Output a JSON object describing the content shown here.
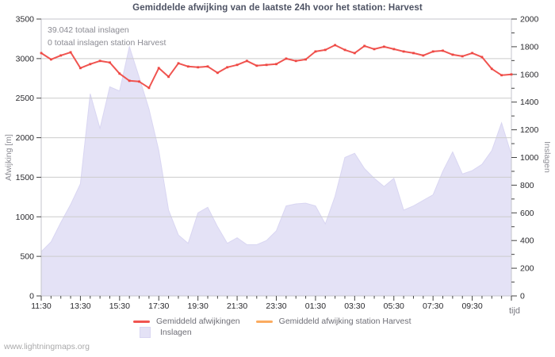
{
  "title": "Gemiddelde afwijking van de laatste 24h voor het station: Harvest",
  "annotations": {
    "total_strikes": "39.042 totaal inslagen",
    "station_strikes": "0 totaal inslagen station Harvest"
  },
  "watermark": "www.lightningmaps.org",
  "colors": {
    "avg_deviation_line": "#f05450",
    "avg_deviation_marker": "#ee4742",
    "station_line": "#fbab60",
    "strikes_fill": "#e4e2f6",
    "strikes_edge": "#d9d6f2",
    "gridline": "#cccccc",
    "plot_border": "#c6c6cc",
    "tick_mark": "#444444",
    "tick_text": "#2a2a2e",
    "muted_text": "#8b8b93"
  },
  "legend": {
    "items": [
      {
        "label": "Gemiddeld afwijkingen",
        "swatch": "line",
        "color": "#f05450"
      },
      {
        "label": "Gemiddeld afwijking station Harvest",
        "swatch": "line",
        "color": "#fbab60"
      },
      {
        "label": "Inslagen",
        "swatch": "box",
        "color": "#e4e2f6"
      }
    ]
  },
  "chart_data": {
    "type": "line",
    "grid": "horizontal",
    "legend_position": "bottom",
    "xlabel": "tijd",
    "x": [
      "11:30",
      "12:00",
      "12:30",
      "13:00",
      "13:30",
      "14:00",
      "14:30",
      "15:00",
      "15:30",
      "16:00",
      "16:30",
      "17:00",
      "17:30",
      "18:00",
      "18:30",
      "19:00",
      "19:30",
      "20:00",
      "20:30",
      "21:00",
      "21:30",
      "22:00",
      "22:30",
      "23:00",
      "23:30",
      "00:00",
      "00:30",
      "01:00",
      "01:30",
      "02:00",
      "02:30",
      "03:00",
      "03:30",
      "04:00",
      "04:30",
      "05:00",
      "05:30",
      "06:00",
      "06:30",
      "07:00",
      "07:30",
      "08:00",
      "08:30",
      "09:00",
      "09:30",
      "10:00",
      "10:30",
      "11:00",
      "11:30"
    ],
    "x_major_ticklabels": [
      "11:30",
      "13:30",
      "15:30",
      "17:30",
      "19:30",
      "21:30",
      "23:30",
      "01:30",
      "03:30",
      "05:30",
      "07:30",
      "09:30"
    ],
    "x_major_every": 4,
    "left_axis": {
      "label": "Afwijking  [m]",
      "min": 0,
      "max": 3500,
      "step": 500
    },
    "right_axis": {
      "label": "Inslagen",
      "min": 0,
      "max": 2000,
      "step": 200,
      "minor_step": 100
    },
    "series": [
      {
        "name": "Gemiddeld afwijkingen",
        "axis": "left",
        "style": "line",
        "values": [
          3070,
          2990,
          3040,
          3080,
          2880,
          2930,
          2970,
          2950,
          2810,
          2720,
          2710,
          2630,
          2880,
          2770,
          2940,
          2900,
          2890,
          2900,
          2820,
          2890,
          2920,
          2970,
          2910,
          2920,
          2930,
          3000,
          2970,
          2990,
          3090,
          3110,
          3170,
          3110,
          3070,
          3160,
          3120,
          3150,
          3120,
          3090,
          3070,
          3040,
          3090,
          3100,
          3050,
          3030,
          3070,
          3020,
          2870,
          2790,
          2800
        ]
      },
      {
        "name": "Gemiddeld afwijking station Harvest",
        "axis": "left",
        "style": "line",
        "values": []
      },
      {
        "name": "Inslagen",
        "axis": "right",
        "style": "area",
        "values": [
          320,
          390,
          530,
          660,
          810,
          1460,
          1210,
          1510,
          1480,
          1800,
          1580,
          1350,
          1050,
          620,
          440,
          380,
          600,
          640,
          500,
          380,
          420,
          370,
          370,
          400,
          470,
          650,
          665,
          670,
          650,
          520,
          720,
          1000,
          1030,
          920,
          850,
          790,
          850,
          620,
          650,
          690,
          730,
          900,
          1040,
          880,
          905,
          950,
          1050,
          1250,
          1020
        ]
      }
    ]
  }
}
